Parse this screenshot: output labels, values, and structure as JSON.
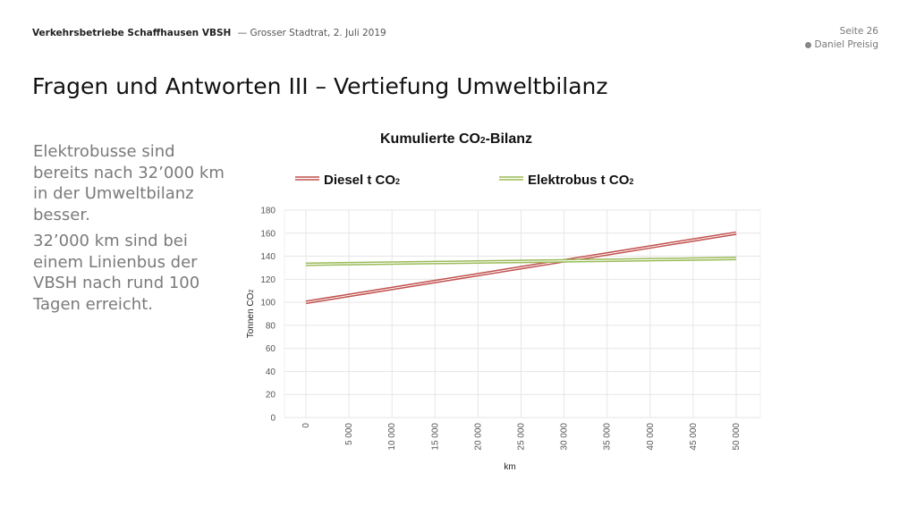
{
  "header": {
    "org": "Verkehrsbetriebe Schaffhausen VBSH",
    "subtitle": "— Grosser Stadtrat, 2. Juli 2019",
    "page": "Seite 26",
    "author": "Daniel Preisig"
  },
  "slide": {
    "title": "Fragen und Antworten III – Vertiefung Umweltbilanz",
    "paragraphs": [
      "Elektrobusse sind bereits nach 32’000 km in der Umweltbilanz besser.",
      "32’000 km sind bei einem Linienbus der VBSH nach rund 100 Tagen erreicht."
    ]
  },
  "colors": {
    "diesel": "#c0504d",
    "elektro": "#9bbb59",
    "grid": "#e6e6e6"
  },
  "chart_data": {
    "type": "line",
    "title": "Kumulierte CO2-Bilanz",
    "xlabel": "km",
    "ylabel": "Tonnen CO2",
    "x": [
      0,
      5000,
      10000,
      15000,
      20000,
      25000,
      30000,
      35000,
      40000,
      45000,
      50000
    ],
    "xtick_labels": [
      "0",
      "5 000",
      "10 000",
      "15 000",
      "20 000",
      "25 000",
      "30 000",
      "35 000",
      "40 000",
      "45 000",
      "50 000"
    ],
    "ylim": [
      0,
      180
    ],
    "yticks": [
      0,
      20,
      40,
      60,
      80,
      100,
      120,
      140,
      160,
      180
    ],
    "grid": true,
    "legend": "top",
    "series": [
      {
        "name": "Diesel t CO2",
        "values": [
          100,
          106,
          112,
          118,
          124,
          130,
          136,
          142,
          148,
          154,
          160
        ]
      },
      {
        "name": "Elektrobus t CO2",
        "values": [
          133,
          133.5,
          134,
          134.5,
          135,
          135.5,
          136,
          136.5,
          137,
          137.5,
          138
        ]
      }
    ]
  }
}
